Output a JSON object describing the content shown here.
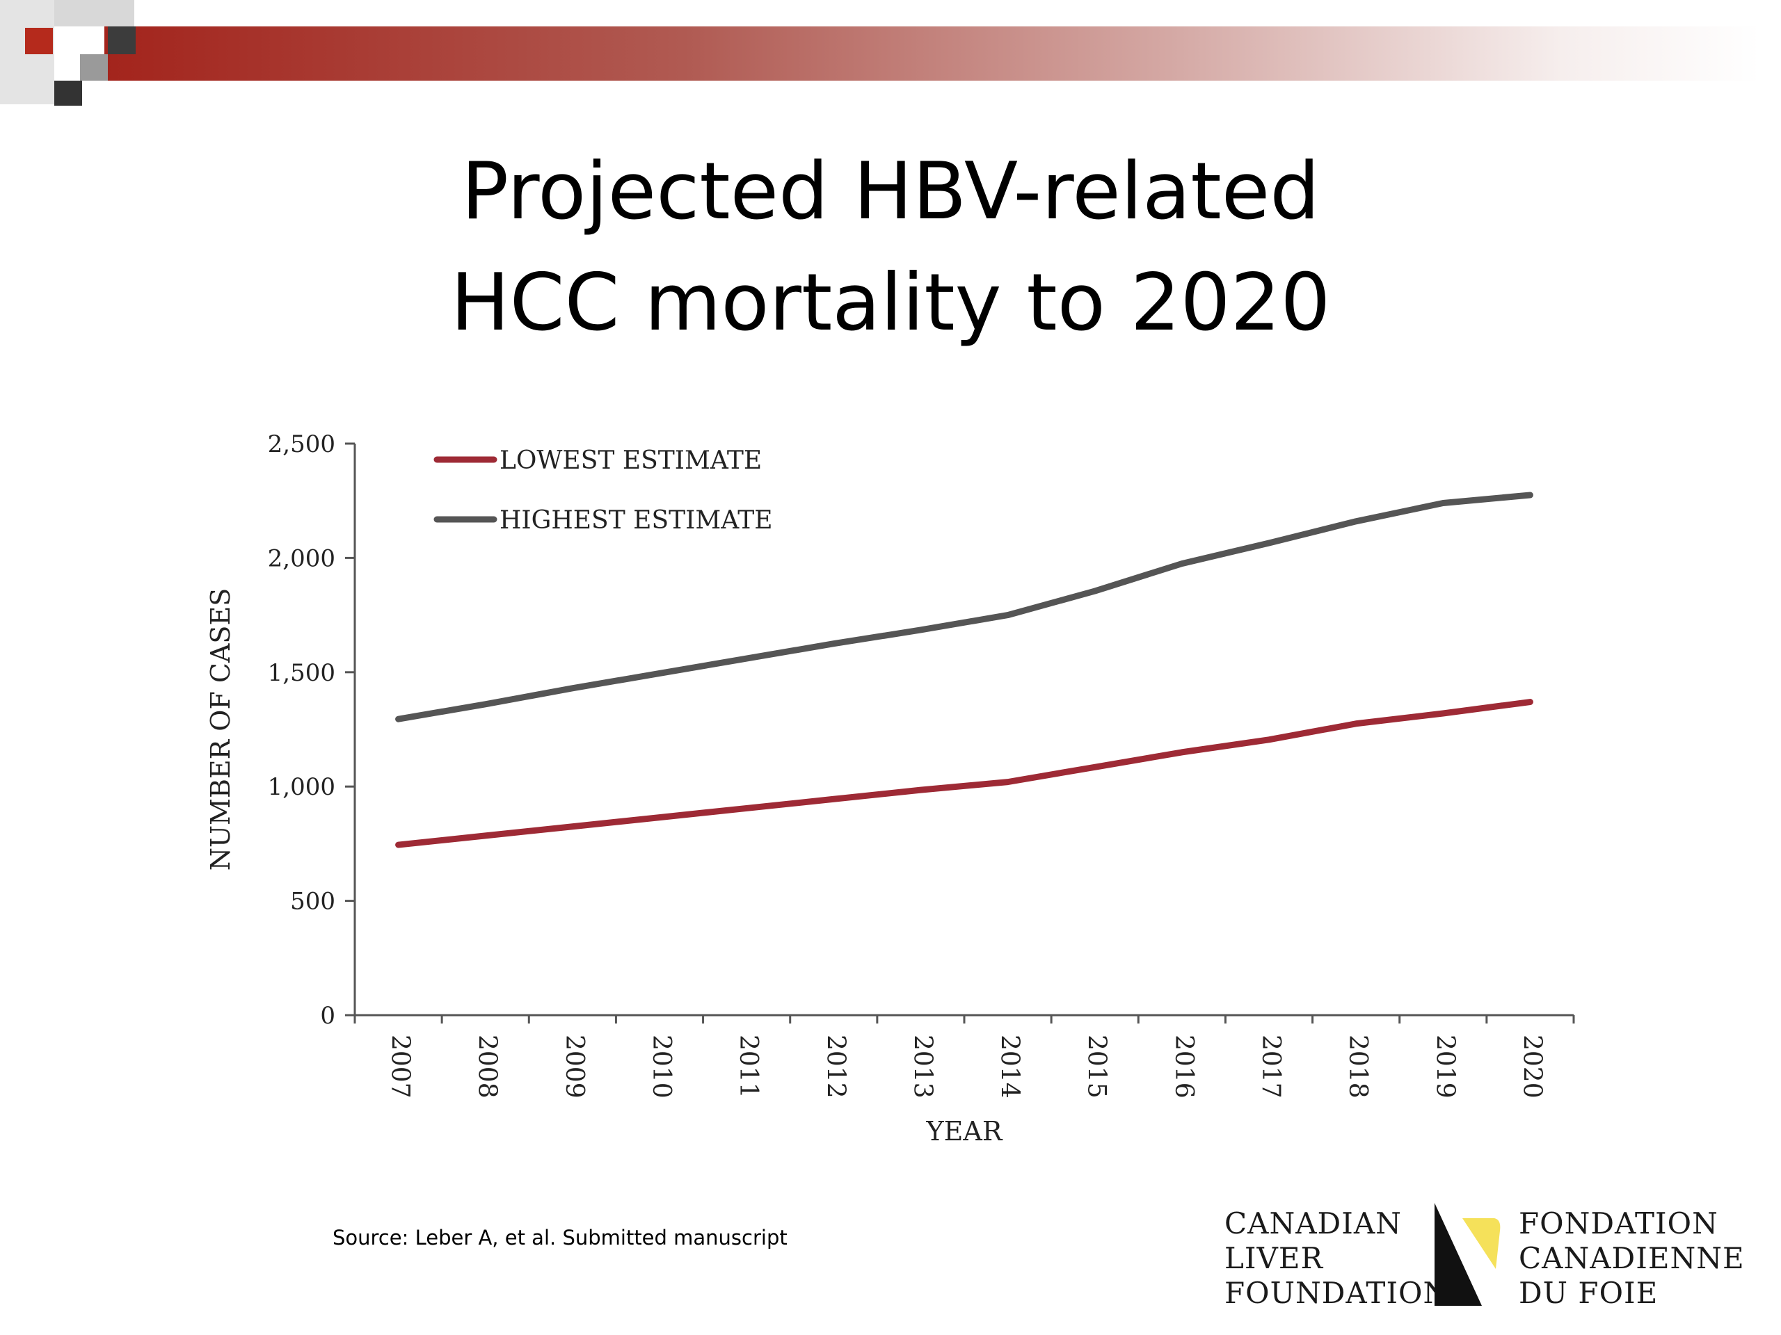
{
  "slide": {
    "title_line1": "Projected HBV-related",
    "title_line2": "HCC mortality to 2020",
    "source": "Source:  Leber A, et al. Submitted manuscript",
    "accent_color": "#a3241c"
  },
  "logo": {
    "en_lines": [
      "CANADIAN",
      "LIVER",
      "FOUNDATION"
    ],
    "fr_lines": [
      "FONDATION",
      "CANADIENNE",
      "DU FOIE"
    ],
    "mark_colors": {
      "dark": "#111111",
      "yellow": "#f5e15a"
    }
  },
  "chart_data": {
    "type": "line",
    "xlabel": "YEAR",
    "ylabel": "NUMBER OF CASES",
    "categories": [
      "2007",
      "2008",
      "2009",
      "2010",
      "2011",
      "2012",
      "2013",
      "2014",
      "2015",
      "2016",
      "2017",
      "2018",
      "2019",
      "2020"
    ],
    "ylim": [
      0,
      2500
    ],
    "yticks": [
      0,
      500,
      1000,
      1500,
      2000,
      2500
    ],
    "ytick_labels": [
      "0",
      "500",
      "1,000",
      "1,500",
      "2,000",
      "2,500"
    ],
    "grid": false,
    "legend_position": "top-left",
    "series": [
      {
        "name": "LOWEST ESTIMATE",
        "color": "#9e2a35",
        "values": [
          745,
          785,
          825,
          865,
          905,
          945,
          985,
          1020,
          1085,
          1150,
          1205,
          1275,
          1320,
          1370
        ]
      },
      {
        "name": "HIGHEST ESTIMATE",
        "color": "#555555",
        "values": [
          1295,
          1360,
          1430,
          1495,
          1560,
          1625,
          1685,
          1750,
          1855,
          1975,
          2065,
          2160,
          2240,
          2275
        ]
      }
    ]
  }
}
